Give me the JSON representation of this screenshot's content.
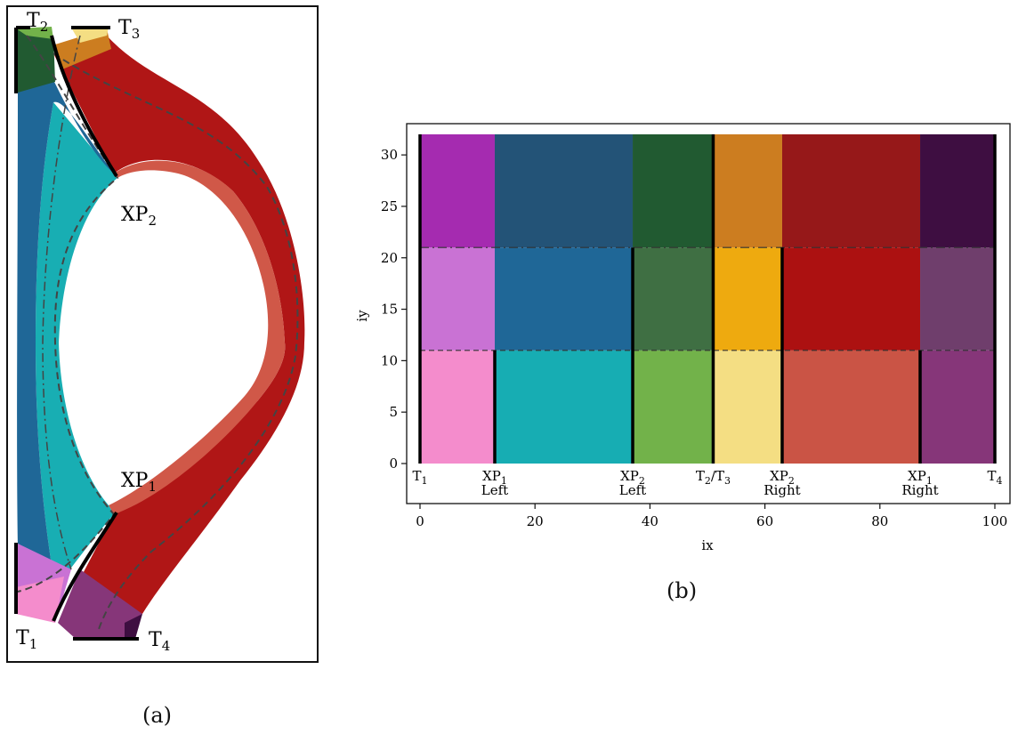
{
  "panel_a": {
    "caption": "(a)",
    "labels": {
      "t1": "T",
      "t1_sub": "1",
      "t2": "T",
      "t2_sub": "2",
      "t3": "T",
      "t3_sub": "3",
      "t4": "T",
      "t4_sub": "4",
      "xp1": "XP",
      "xp1_sub": "1",
      "xp2": "XP",
      "xp2_sub": "2"
    }
  },
  "panel_b": {
    "caption": "(b)",
    "xlabel": "ix",
    "ylabel": "iy",
    "x_ticks": [
      "0",
      "20",
      "40",
      "60",
      "80",
      "100"
    ],
    "y_ticks": [
      "0",
      "5",
      "10",
      "15",
      "20",
      "25",
      "30"
    ],
    "annotations": [
      {
        "line1": "T",
        "sub": "1",
        "line2": ""
      },
      {
        "line1": "XP",
        "sub": "1",
        "line2": "Left"
      },
      {
        "line1": "XP",
        "sub": "2",
        "line2": "Left"
      },
      {
        "line1": "T",
        "sub": "2",
        "line1b": "/T",
        "sub2": "3",
        "line2": ""
      },
      {
        "line1": "XP",
        "sub": "2",
        "line2": "Right"
      },
      {
        "line1": "XP",
        "sub": "1",
        "line2": "Right"
      },
      {
        "line1": "T",
        "sub": "4",
        "line2": ""
      }
    ]
  },
  "chart_data": {
    "type": "heatmap",
    "xlabel": "ix",
    "ylabel": "iy",
    "xlim": [
      0,
      100
    ],
    "ylim": [
      0,
      32
    ],
    "x_boundaries": [
      0,
      13,
      37,
      51,
      63,
      87,
      100
    ],
    "y_boundaries": [
      0,
      11,
      21,
      32
    ],
    "cells": [
      {
        "x": [
          0,
          13
        ],
        "y": [
          0,
          11
        ],
        "color": "#f48ccc"
      },
      {
        "x": [
          0,
          13
        ],
        "y": [
          11,
          21
        ],
        "color": "#c972d4"
      },
      {
        "x": [
          0,
          13
        ],
        "y": [
          21,
          32
        ],
        "color": "#a52bb0"
      },
      {
        "x": [
          13,
          37
        ],
        "y": [
          0,
          11
        ],
        "color": "#17adb3"
      },
      {
        "x": [
          13,
          37
        ],
        "y": [
          11,
          21
        ],
        "color": "#1f6797"
      },
      {
        "x": [
          13,
          37
        ],
        "y": [
          21,
          32
        ],
        "color": "#235377"
      },
      {
        "x": [
          37,
          51
        ],
        "y": [
          0,
          11
        ],
        "color": "#72b24a"
      },
      {
        "x": [
          37,
          51
        ],
        "y": [
          11,
          21
        ],
        "color": "#3f6f43"
      },
      {
        "x": [
          37,
          51
        ],
        "y": [
          21,
          32
        ],
        "color": "#215a31"
      },
      {
        "x": [
          51,
          63
        ],
        "y": [
          0,
          11
        ],
        "color": "#f4de83"
      },
      {
        "x": [
          51,
          63
        ],
        "y": [
          11,
          21
        ],
        "color": "#eeaa0f"
      },
      {
        "x": [
          51,
          63
        ],
        "y": [
          21,
          32
        ],
        "color": "#cc7d20"
      },
      {
        "x": [
          63,
          87
        ],
        "y": [
          0,
          11
        ],
        "color": "#ca5445"
      },
      {
        "x": [
          63,
          87
        ],
        "y": [
          11,
          21
        ],
        "color": "#ac1111"
      },
      {
        "x": [
          63,
          87
        ],
        "y": [
          21,
          32
        ],
        "color": "#961819"
      },
      {
        "x": [
          87,
          100
        ],
        "y": [
          0,
          11
        ],
        "color": "#863679"
      },
      {
        "x": [
          87,
          100
        ],
        "y": [
          11,
          21
        ],
        "color": "#6f3e6c"
      },
      {
        "x": [
          87,
          100
        ],
        "y": [
          21,
          32
        ],
        "color": "#3e0e41"
      }
    ],
    "thick_vertical_lines": [
      {
        "x": 0,
        "y": [
          0,
          32
        ]
      },
      {
        "x": 13,
        "y": [
          0,
          11
        ]
      },
      {
        "x": 37,
        "y": [
          0,
          21
        ]
      },
      {
        "x": 51,
        "y": [
          0,
          32
        ]
      },
      {
        "x": 63,
        "y": [
          0,
          21
        ]
      },
      {
        "x": 87,
        "y": [
          0,
          11
        ]
      },
      {
        "x": 100,
        "y": [
          0,
          32
        ]
      }
    ],
    "dashed_horizontal_lines": [
      11,
      21
    ],
    "annotation_x": [
      0,
      13,
      37,
      51,
      63,
      87,
      100
    ]
  }
}
